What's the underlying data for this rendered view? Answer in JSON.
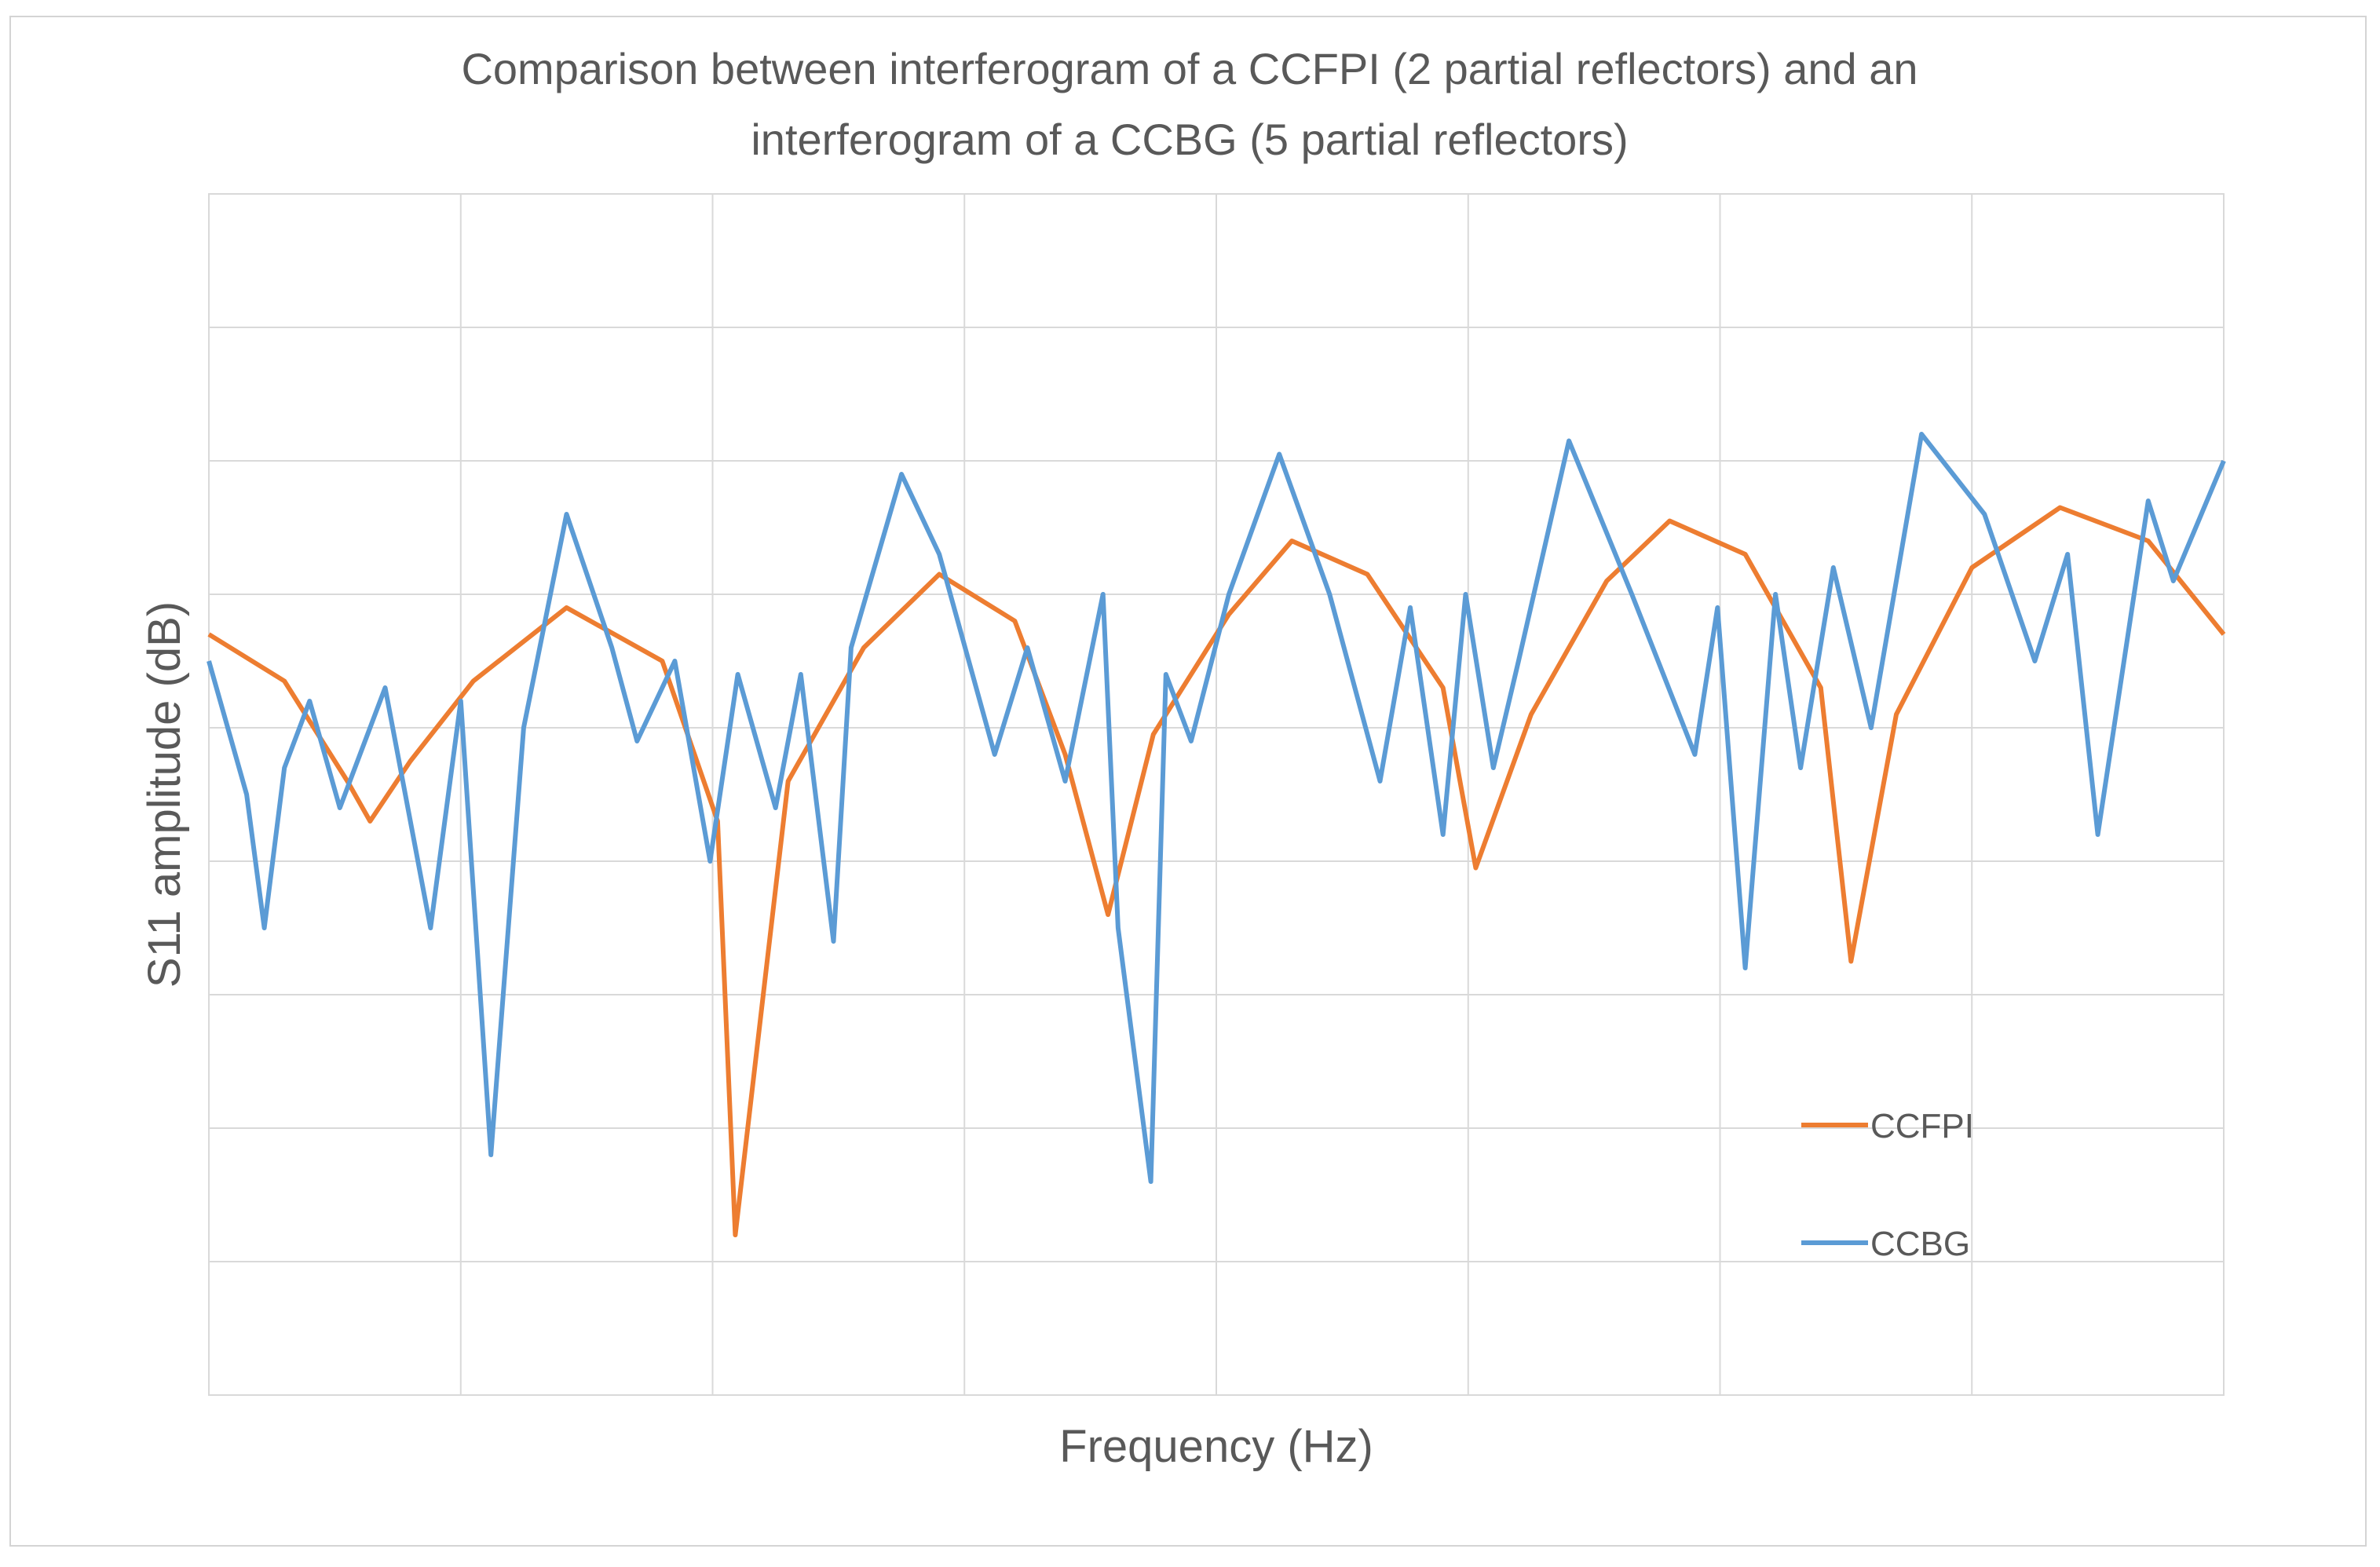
{
  "chart_data": {
    "type": "line",
    "title": "Comparison between interferogram of a CCFPI (2 partial reflectors) and an interferogram of a CCBG (5 partial reflectors)",
    "title_lines": [
      "Comparison between interferogram of a CCFPI (2 partial reflectors) and an",
      "interferogram of a CCBG (5 partial reflectors)"
    ],
    "xlabel": "Frequency (Hz)",
    "ylabel": "S11 amplitude (dB)",
    "xlim": [
      0,
      8
    ],
    "ylim": [
      0,
      9
    ],
    "x_tick_labels": [],
    "y_tick_labels": [],
    "grid": true,
    "legend_position": "bottom-right",
    "series": [
      {
        "name": "CCFPI",
        "color": "#ED7D31",
        "x": [
          0,
          0.3,
          0.55,
          0.64,
          0.8,
          1.05,
          1.42,
          1.8,
          2.02,
          2.09,
          2.3,
          2.6,
          2.9,
          3.2,
          3.4,
          3.57,
          3.75,
          4.05,
          4.3,
          4.6,
          4.9,
          5.03,
          5.25,
          5.55,
          5.8,
          6.1,
          6.4,
          6.52,
          6.7,
          7.0,
          7.35,
          7.7,
          8.0
        ],
        "y": [
          5.7,
          5.35,
          4.6,
          4.3,
          4.75,
          5.35,
          5.9,
          5.5,
          4.3,
          1.2,
          4.6,
          5.6,
          6.15,
          5.8,
          4.8,
          3.6,
          4.95,
          5.85,
          6.4,
          6.15,
          5.3,
          3.95,
          5.1,
          6.1,
          6.55,
          6.3,
          5.3,
          3.25,
          5.1,
          6.2,
          6.65,
          6.4,
          5.7
        ]
      },
      {
        "name": "CCBG",
        "color": "#5B9BD5",
        "x": [
          0,
          0.15,
          0.22,
          0.3,
          0.4,
          0.52,
          0.7,
          0.88,
          1.0,
          1.12,
          1.25,
          1.42,
          1.6,
          1.7,
          1.85,
          1.99,
          2.1,
          2.25,
          2.35,
          2.48,
          2.55,
          2.75,
          2.9,
          3.12,
          3.25,
          3.4,
          3.55,
          3.61,
          3.74,
          3.8,
          3.9,
          4.05,
          4.25,
          4.45,
          4.65,
          4.77,
          4.9,
          4.99,
          5.1,
          5.2,
          5.4,
          5.65,
          5.9,
          5.99,
          6.1,
          6.22,
          6.32,
          6.45,
          6.6,
          6.8,
          7.05,
          7.25,
          7.38,
          7.5,
          7.7,
          7.8,
          8.0
        ],
        "y": [
          5.5,
          4.5,
          3.5,
          4.7,
          5.2,
          4.4,
          5.3,
          3.5,
          5.2,
          1.8,
          5.0,
          6.6,
          5.6,
          4.9,
          5.5,
          4.0,
          5.4,
          4.4,
          5.4,
          3.4,
          5.6,
          6.9,
          6.3,
          4.8,
          5.6,
          4.6,
          6.0,
          3.5,
          1.6,
          5.4,
          4.9,
          6.0,
          7.05,
          6.0,
          4.6,
          5.9,
          4.2,
          6.0,
          4.7,
          5.5,
          7.15,
          6.0,
          4.8,
          5.9,
          3.2,
          6.0,
          4.7,
          6.2,
          5.0,
          7.2,
          6.6,
          5.5,
          6.3,
          4.2,
          6.7,
          6.1,
          7.0
        ]
      }
    ]
  }
}
